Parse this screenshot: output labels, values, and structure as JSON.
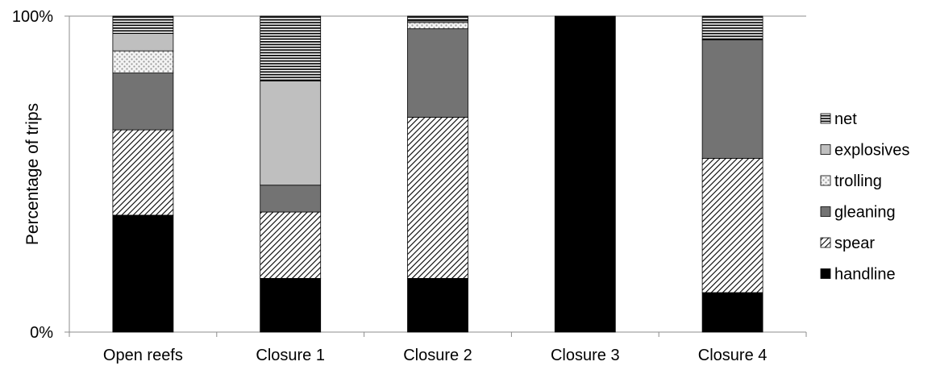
{
  "chart_data": {
    "type": "bar",
    "stacked": true,
    "percent": true,
    "title": "",
    "xlabel": "",
    "ylabel": "Percentage of trips",
    "ylim": [
      0,
      100
    ],
    "yticks": [
      "0%",
      "100%"
    ],
    "grid": false,
    "legend_position": "right",
    "categories": [
      "Open reefs",
      "Closure 1",
      "Closure 2",
      "Closure 3",
      "Closure 4"
    ],
    "series": [
      {
        "name": "handline",
        "pattern": "solid-black",
        "values": [
          37,
          17,
          17,
          100,
          12.5
        ]
      },
      {
        "name": "spear",
        "pattern": "diagonal-hatch",
        "values": [
          27,
          21,
          51,
          0,
          42.5
        ]
      },
      {
        "name": "gleaning",
        "pattern": "dark-gray",
        "values": [
          18,
          8.5,
          28,
          0,
          37.5
        ]
      },
      {
        "name": "trolling",
        "pattern": "dotted",
        "values": [
          7,
          0,
          2,
          0,
          0
        ]
      },
      {
        "name": "explosives",
        "pattern": "light-gray",
        "values": [
          5.5,
          33,
          0.5,
          0,
          0
        ]
      },
      {
        "name": "net",
        "pattern": "horizontal-lines",
        "values": [
          5.5,
          20.5,
          1.5,
          0,
          7.5
        ]
      }
    ],
    "legend_order": [
      "net",
      "explosives",
      "trolling",
      "gleaning",
      "spear",
      "handline"
    ]
  }
}
